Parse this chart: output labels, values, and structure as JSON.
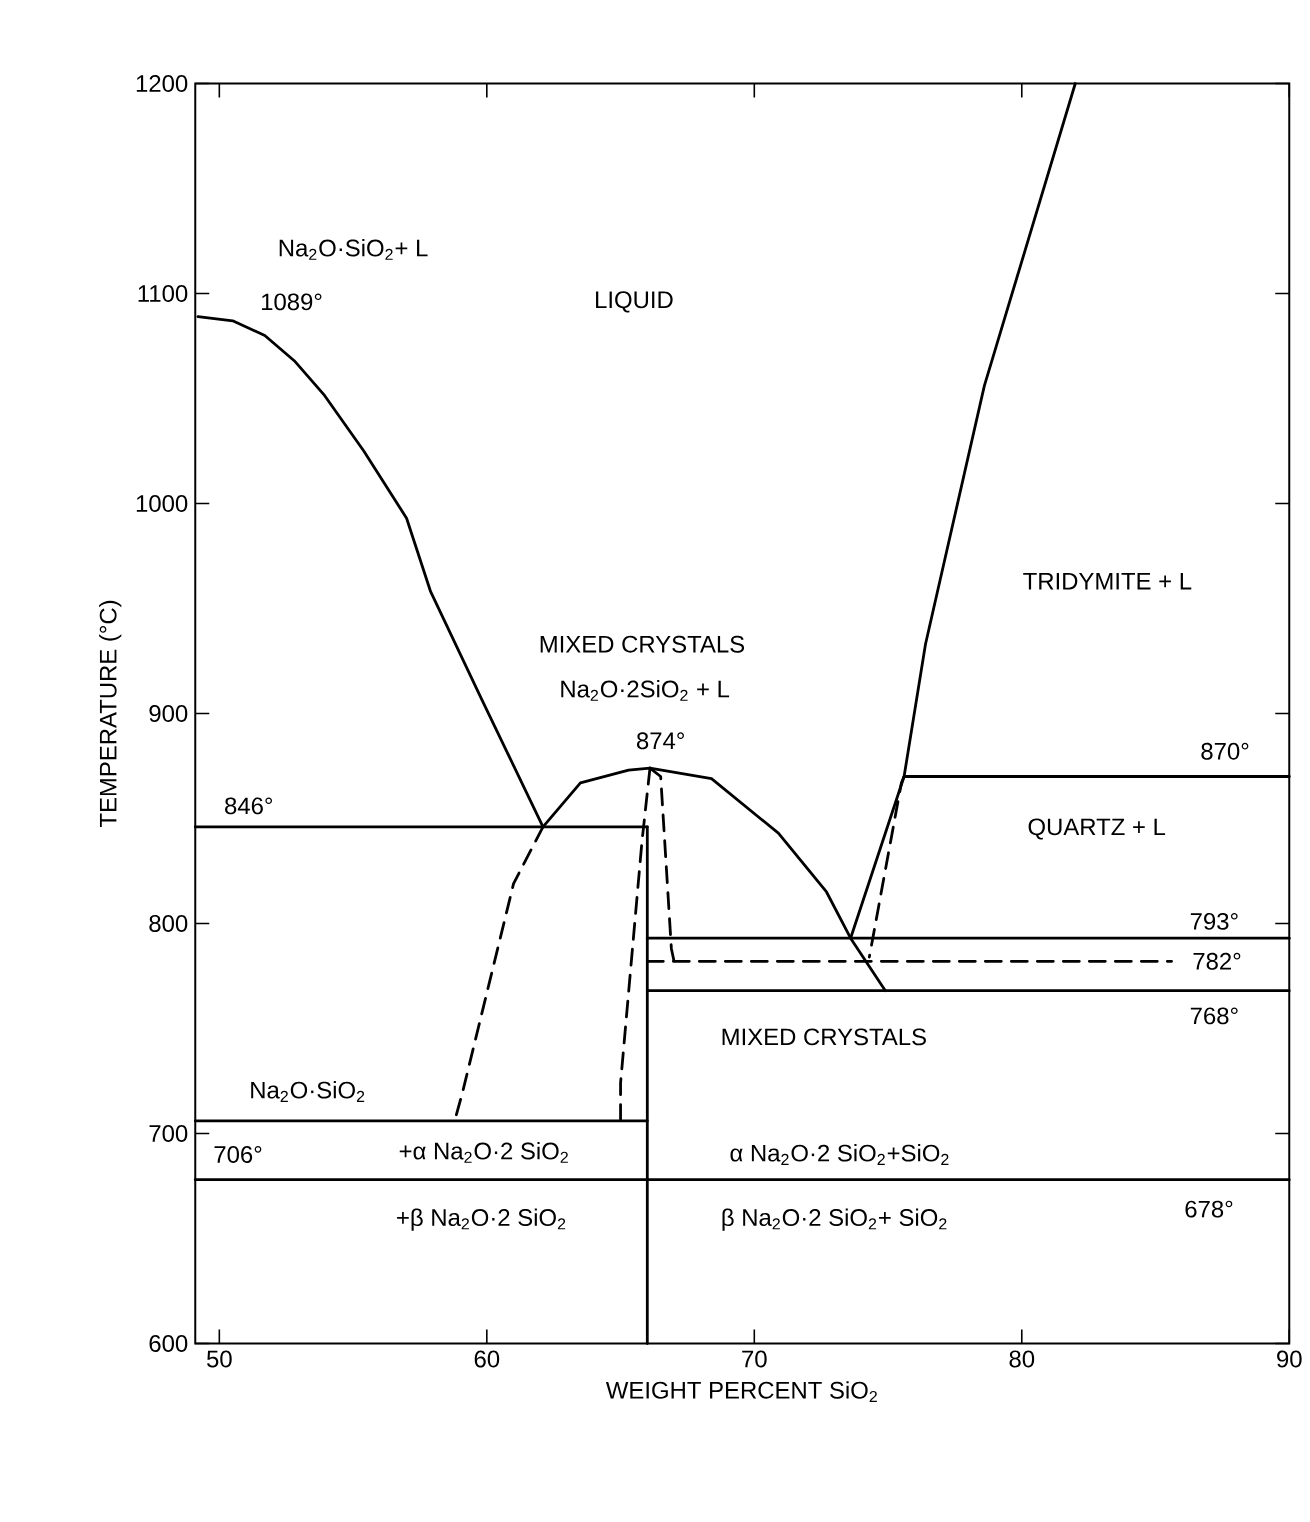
{
  "chart_data": {
    "type": "line",
    "xlabel": "WEIGHT PERCENT SiO$_{2}$",
    "ylabel": "TEMPERATURE (°C)",
    "xlim": [
      49.1,
      90
    ],
    "ylim": [
      600,
      1200
    ],
    "xticks": [
      50,
      60,
      70,
      80,
      90
    ],
    "yticks": [
      600,
      700,
      800,
      900,
      1000,
      1100,
      1200
    ],
    "grid": false,
    "marker": "none",
    "series": [
      {
        "color": "#000000",
        "line_style": "solid",
        "x": [
          49.2,
          50.5,
          51.7,
          52.8,
          53.9,
          55.4,
          57,
          57.9,
          59.8,
          62.1
        ],
        "values": [
          1089,
          1087,
          1080,
          1068,
          1052,
          1025,
          993,
          958,
          907,
          846
        ]
      },
      {
        "color": "#000000",
        "line_style": "solid",
        "x": [
          62.1,
          63.5,
          65.3,
          66.1,
          68.4,
          70.9,
          72.7,
          73.6,
          74.9
        ],
        "values": [
          846,
          867,
          873,
          874,
          869,
          843,
          815,
          793,
          768
        ]
      },
      {
        "color": "#000000",
        "line_style": "solid",
        "x": [
          49.1,
          66
        ],
        "values": [
          846,
          846
        ]
      },
      {
        "color": "#000000",
        "line_style": "solid",
        "x": [
          66,
          66
        ],
        "values": [
          600,
          846
        ]
      },
      {
        "color": "#000000",
        "line_style": "dashed",
        "x": [
          62.1,
          61,
          59.1,
          58.8
        ],
        "values": [
          846,
          819,
          720,
          706
        ]
      },
      {
        "color": "#000000",
        "line_style": "dashed",
        "x": [
          66.1,
          65.8,
          65,
          65
        ],
        "values": [
          874,
          839,
          724,
          706
        ]
      },
      {
        "color": "#000000",
        "line_style": "dashed",
        "x": [
          66.1,
          66.5,
          66.9,
          67
        ],
        "values": [
          874,
          870,
          788,
          782
        ]
      },
      {
        "color": "#000000",
        "line_style": "solid",
        "x": [
          49.1,
          66
        ],
        "values": [
          706,
          706
        ]
      },
      {
        "color": "#000000",
        "line_style": "solid",
        "x": [
          49.1,
          90
        ],
        "values": [
          678,
          678
        ]
      },
      {
        "color": "#000000",
        "line_style": "solid",
        "x": [
          66,
          90
        ],
        "values": [
          793,
          793
        ]
      },
      {
        "color": "#000000",
        "line_style": "dashed",
        "x": [
          66,
          85.6
        ],
        "values": [
          782,
          782
        ]
      },
      {
        "color": "#000000",
        "line_style": "solid",
        "x": [
          66,
          90
        ],
        "values": [
          768,
          768
        ]
      },
      {
        "color": "#000000",
        "line_style": "solid",
        "x": [
          73.6,
          75.6,
          76.4,
          78.6,
          82
        ],
        "values": [
          793,
          870,
          933,
          1056,
          1200
        ]
      },
      {
        "color": "#000000",
        "line_style": "solid",
        "x": [
          75.6,
          90
        ],
        "values": [
          870,
          870
        ]
      },
      {
        "color": "#000000",
        "line_style": "dashed",
        "x": [
          75.6,
          75.5,
          74.3
        ],
        "values": [
          870,
          867,
          784
        ]
      }
    ],
    "annotations": [
      "Na$_{2}$O·SiO$_{2}$+ L",
      "1089°",
      "LIQUID",
      "TRIDYMITE + L",
      "MIXED CRYSTALS",
      "Na$_{2}$O·2SiO$_{2}$ + L",
      "874°",
      "870°",
      "846°",
      "QUARTZ + L",
      "793°",
      "782°",
      "768°",
      "MIXED CRYSTALS",
      "Na$_{2}$O·SiO$_{2}$",
      "706°",
      "+α Na$_{2}$O·2 SiO$_{2}$",
      "α Na$_{2}$O·2 SiO$_{2}$+SiO$_{2}$",
      "+β Na$_{2}$O·2 SiO$_{2}$",
      "β Na$_{2}$O·2 SiO$_{2}$+ SiO$_{2}$",
      "678°"
    ]
  }
}
